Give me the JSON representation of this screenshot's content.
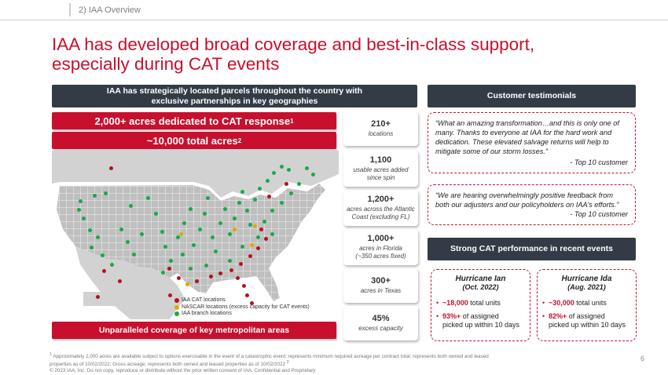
{
  "section_tag": "2) IAA Overview",
  "title_line1": "IAA has developed broad coverage and best-in-class support,",
  "title_line2": "especially during CAT events",
  "left_header_line1": "IAA has strategically located parcels throughout the country with",
  "left_header_line2": "exclusive partnerships in key geographies",
  "cat_acres_text": "2,000+ acres dedicated to CAT response",
  "cat_acres_sup": "1",
  "total_acres_text": "~10,000 total acres",
  "total_acres_sup": "2",
  "stats": [
    {
      "value": "210+",
      "desc1": "locations",
      "desc2": ""
    },
    {
      "value": "1,100",
      "desc1": "usable acres added",
      "desc2": "since spin"
    },
    {
      "value": "1,200+",
      "desc1": "acres across the Atlantic",
      "desc2": "Coast (excluding FL)"
    },
    {
      "value": "1,000+",
      "desc1": "acres in Florida",
      "desc2": "(~350 acres fixed)"
    },
    {
      "value": "300+",
      "desc1": "acres in Texas",
      "desc2": ""
    },
    {
      "value": "45%",
      "desc1": "excess capacity",
      "desc2": ""
    }
  ],
  "legend": {
    "cat": "IAA CAT locations",
    "nascar": "NASCAR locations (excess capacity for CAT events)",
    "branch": "IAA branch locations"
  },
  "bottom_banner": "Unparalleled coverage of key metropolitan areas",
  "testimonials_header": "Customer testimonials",
  "testimonial1": {
    "quote": "“What an amazing transformation…and this is only one of many.  Thanks to everyone at IAA for the hard work and dedication.  These elevated salvage returns will help to mitigate some of our storm losses.”",
    "attribution": "- Top 10 customer"
  },
  "testimonial2": {
    "quote": "“We are hearing overwhelmingly positive feedback from both our adjusters and our policyholders on IAA’s efforts.”",
    "attribution": "- Top 10 customer"
  },
  "cat_performance_header": "Strong CAT performance in recent events",
  "hurricanes": [
    {
      "name": "Hurricane Ian",
      "date": "(Oct. 2022)",
      "units_strong": "~18,000",
      "units_rest": " total units",
      "pct_strong": "93%+",
      "pct_rest1": " of assigned",
      "pct_rest2": "picked up within 10 days"
    },
    {
      "name": "Hurricane Ida",
      "date": "(Aug. 2021)",
      "units_strong": "~30,000",
      "units_rest": " total units",
      "pct_strong": "82%+",
      "pct_rest1": " of assigned",
      "pct_rest2": "picked up within 10 days"
    }
  ],
  "footnote_line1": "Approximately 2,000 acres are available subject to options exercisable in the event of a catastrophic event; represents minimum required acreage per contract total; represents both owned and leased",
  "footnote_line2": "properties as of 10/02/2022;  Gross acreage; represents both owned and leased properties as of 10/02/2022",
  "footnote_sup1": "1",
  "footnote_sup2": "2",
  "copyright": "© 2023 IAA, Inc. Do not copy, reproduce or distribute without the prior written consent of IAA. Confidential and Proprietary",
  "page_number": "6",
  "colors": {
    "brand_red": "#c8102e",
    "dark_slate": "#333c46",
    "branch_green": "#1aa84a",
    "nascar_yellow": "#e0a800"
  }
}
